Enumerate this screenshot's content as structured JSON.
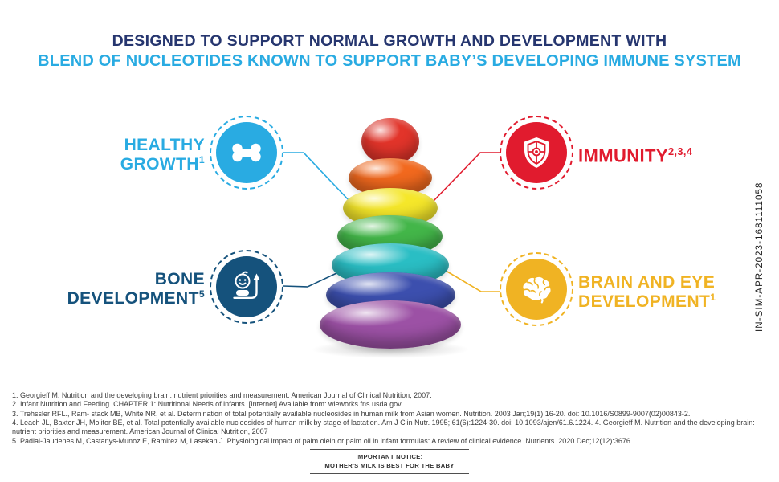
{
  "header": {
    "title_line1": "DESIGNED TO SUPPORT NORMAL GROWTH AND DEVELOPMENT WITH",
    "title_line2": "BLEND OF NUCLEOTIDES KNOWN TO SUPPORT BABY’S DEVELOPING IMMUNE SYSTEM",
    "title_color": "#26366f",
    "subtitle_color": "#29abe2"
  },
  "callouts": {
    "healthy_growth": {
      "line1": "HEALTHY",
      "line2": "GROWTH",
      "sup": "1",
      "color": "#29abe2",
      "icon": "bone-icon"
    },
    "immunity": {
      "line1": "IMMUNITY",
      "sup": "2,3,4",
      "color": "#e11b2e",
      "icon": "shield-icon"
    },
    "bone_development": {
      "line1": "BONE",
      "line2": "DEVELOPMENT",
      "sup": "5",
      "color": "#15527c",
      "icon": "baby-growth-icon"
    },
    "brain_eye_development": {
      "line1": "BRAIN AND EYE",
      "line2": "DEVELOPMENT",
      "sup": "1",
      "color": "#f0b323",
      "icon": "brain-icon"
    }
  },
  "toy": {
    "description": "Rainbow stacking rings baby toy with red ball on top",
    "ring_colors": {
      "ball": "#e2342a",
      "orange": "#f2691e",
      "yellow": "#f5e72a",
      "green": "#43b649",
      "teal": "#2abec4",
      "blue": "#3c4fae",
      "purple": "#9c51a5"
    }
  },
  "footnotes": {
    "references": [
      "1. Georgieff M. Nutrition and the developing brain: nutrient priorities and measurement. American Journal of Clinical Nutrition, 2007.",
      "2. Infant Nutrition and Feeding. CHAPTER 1: Nutritional Needs of infants. [Internet] Available from: wieworks.fns.usda.gov.",
      "3. Trehssler RFL., Ram- stack MB, White NR, et al. Determination of total potentially available nucleosides in human milk from Asian women. Nutrition. 2003 Jan;19(1):16-20. doi: 10.1016/S0899-9007(02)00843-2.",
      "4. Leach JL, Baxter JH, Molitor BE, et al. Total potentially available nucleosides of human milk by stage of lactation. Am J Clin Nutr. 1995; 61(6):1224-30. doi: 10.1093/ajen/61.6.1224. 4. Georgieff M. Nutrition and the developing brain: nutrient priorities and measurement. American Journal of Clinical Nutrition, 2007",
      "5. Padial-Jaudenes M, Castanys-Munoz E, Ramirez M, Lasekan J. Physiological impact of palm olein or palm oil in infant formulas: A review of clinical evidence. Nutrients. 2020 Dec;12(12):3676"
    ]
  },
  "notice": {
    "line1": "IMPORTANT NOTICE:",
    "line2": "MOTHER'S MILK IS BEST FOR THE BABY"
  },
  "side_code": "IN-SIM-APR-2023-1681111058"
}
